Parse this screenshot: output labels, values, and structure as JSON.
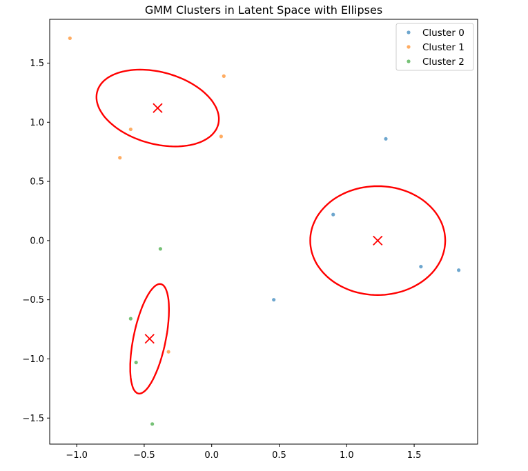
{
  "chart_data": {
    "type": "scatter",
    "title": "GMM Clusters in Latent Space with Ellipses",
    "xlabel": "",
    "ylabel": "",
    "xlim": [
      -1.2,
      1.97
    ],
    "ylim": [
      -1.72,
      1.87
    ],
    "xticks": [
      -1.0,
      -0.5,
      0.0,
      0.5,
      1.0,
      1.5
    ],
    "xtick_labels": [
      "−1.0",
      "−0.5",
      "0.0",
      "0.5",
      "1.0",
      "1.5"
    ],
    "yticks": [
      -1.5,
      -1.0,
      -0.5,
      0.0,
      0.5,
      1.0,
      1.5
    ],
    "ytick_labels": [
      "−1.5",
      "−1.0",
      "−0.5",
      "0.0",
      "0.5",
      "1.0",
      "1.5"
    ],
    "grid": false,
    "legend_position": "top-right",
    "series": [
      {
        "name": "Cluster 0",
        "color": "#1f77b4",
        "points": [
          [
            1.29,
            0.86
          ],
          [
            0.9,
            0.22
          ],
          [
            1.55,
            -0.22
          ],
          [
            1.83,
            -0.25
          ],
          [
            0.46,
            -0.5
          ]
        ]
      },
      {
        "name": "Cluster 1",
        "color": "#ff7f0e",
        "points": [
          [
            -1.05,
            1.71
          ],
          [
            0.09,
            1.39
          ],
          [
            -0.6,
            0.94
          ],
          [
            0.07,
            0.88
          ],
          [
            -0.68,
            0.7
          ],
          [
            -0.32,
            -0.94
          ]
        ]
      },
      {
        "name": "Cluster 2",
        "color": "#2ca02c",
        "points": [
          [
            -0.38,
            -0.07
          ],
          [
            -0.6,
            -0.66
          ],
          [
            -0.56,
            -1.03
          ],
          [
            -0.44,
            -1.55
          ]
        ]
      }
    ],
    "ellipses": [
      {
        "cx": -0.4,
        "cy": 1.12,
        "a": 0.47,
        "b": 0.3,
        "angle_deg": -20,
        "color": "#ff0000"
      },
      {
        "cx": 1.23,
        "cy": 0.0,
        "a": 0.5,
        "b": 0.46,
        "angle_deg": 0,
        "color": "#ff0000"
      },
      {
        "cx": -0.46,
        "cy": -0.83,
        "a": 0.47,
        "b": 0.12,
        "angle_deg": 80,
        "color": "#ff0000"
      }
    ],
    "centroids": [
      {
        "x": -0.4,
        "y": 1.12
      },
      {
        "x": 1.23,
        "y": 0.0
      },
      {
        "x": -0.46,
        "y": -0.83
      }
    ],
    "centroid_color": "#ff0000",
    "point_alpha": 0.65
  }
}
